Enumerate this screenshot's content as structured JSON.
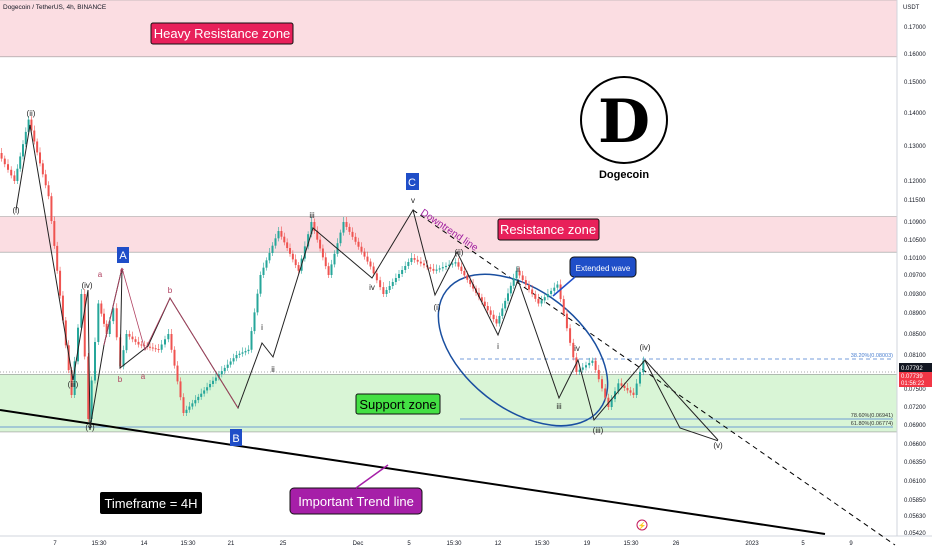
{
  "chart_data": {
    "type": "candlestick",
    "title": "Dogecoin / TetherUS, 4h, BINANCE",
    "currency": "USDT",
    "timeframe_label": "Timeframe = 4H",
    "price_axis": {
      "ticks": [
        "0.17000",
        "0.16000",
        "0.15000",
        "0.14000",
        "0.13000",
        "0.12000",
        "0.11500",
        "0.10900",
        "0.10500",
        "0.10100",
        "0.09700",
        "0.09300",
        "0.08900",
        "0.08500",
        "0.08100",
        "0.07500",
        "0.07200",
        "0.06900",
        "0.06600",
        "0.06350",
        "0.06100",
        "0.05850",
        "0.05630",
        "0.05420"
      ],
      "current_price": "0.07739",
      "upper_marker": "0.07792",
      "countdown": "01:56:22"
    },
    "time_axis": {
      "ticks": [
        "7",
        "15:30",
        "14",
        "15:30",
        "21",
        "25",
        "Dec",
        "5",
        "15:30",
        "12",
        "15:30",
        "19",
        "15:30",
        "26",
        "2023",
        "5",
        "9"
      ]
    },
    "zones": [
      {
        "label": "Heavy Resistance zone",
        "top": 0.181,
        "bottom": 0.159
      },
      {
        "label": "Resistance zone",
        "top": 0.1105,
        "bottom": 0.1023
      },
      {
        "label": "Support zone",
        "top": 0.0776,
        "bottom": 0.0679
      }
    ],
    "fib_levels": [
      {
        "label": "38.20%(0.08003)",
        "value": 0.08003
      },
      {
        "label": "78.60%(0.06941)",
        "value": 0.06941
      },
      {
        "label": "61.80%(0.06774)",
        "value": 0.06774
      }
    ],
    "annotations": {
      "logo_letter": "D",
      "logo_caption": "Dogecoin",
      "wave_A": "A",
      "wave_B": "B",
      "wave_C": "C",
      "downtrend_line": "Downtrend line",
      "extended_wave": "Extended wave",
      "trend_line": "Important Trend line",
      "w_i": "(i)",
      "w_ii": "(ii)",
      "w_iii": "(iii)",
      "w_iv": "(iv)",
      "w_v": "(v)",
      "w_i2": "(i)",
      "w_ii2": "(ii)",
      "w_iii2": "(iii)",
      "w_iv2": "(iv)",
      "w_v2": "(v)",
      "s_a": "a",
      "s_b": "b",
      "s_c": "c",
      "s_a2": "a",
      "s_b2": "b",
      "s_i": "i",
      "s_ii": "ii",
      "s_iii": "iii",
      "s_iv": "iv",
      "s_v": "v",
      "s_i2": "i",
      "s_ii2": "ii",
      "s_iii2": "iii",
      "s_iv2": "iv"
    },
    "price_path": [
      0.128,
      0.12,
      0.138,
      0.116,
      0.074,
      0.093,
      0.07,
      0.091,
      0.085,
      0.09,
      0.079,
      0.085,
      0.083,
      0.082,
      0.085,
      0.071,
      0.081,
      0.082,
      0.097,
      0.107,
      0.098,
      0.109,
      0.097,
      0.109,
      0.099,
      0.093,
      0.101,
      0.098,
      0.1,
      0.087,
      0.098,
      0.091,
      0.095,
      0.078,
      0.08,
      0.072,
      0.076,
      0.074,
      0.08
    ],
    "projection_path": [
      0.08,
      0.0735,
      0.0665
    ]
  }
}
